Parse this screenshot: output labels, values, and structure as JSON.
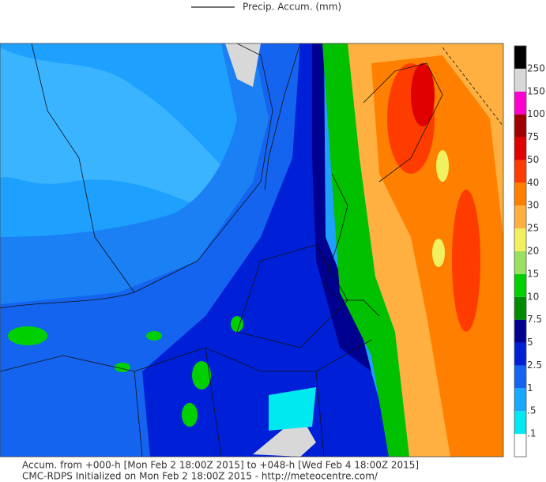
{
  "legend": {
    "label": "Precip. Accum. (mm)"
  },
  "colorbar": {
    "labels": [
      ".1",
      ".5",
      "1",
      "2.5",
      "5",
      "7.5",
      "10",
      "15",
      "20",
      "25",
      "30",
      "40",
      "50",
      "75",
      "100",
      "150",
      "250"
    ],
    "colors": [
      "#ffffff",
      "#00e8f0",
      "#18a8ff",
      "#1464f0",
      "#0020d8",
      "#000090",
      "#008c00",
      "#00d000",
      "#98e060",
      "#f0f060",
      "#ffb040",
      "#ff8000",
      "#ff3c00",
      "#e00000",
      "#a00000",
      "#ff00d0",
      "#d8d8d8",
      "#000000"
    ]
  },
  "footer": {
    "line1": "Accum. from +000-h [Mon Feb 2 18:00Z 2015] to +048-h [Wed Feb 4 18:00Z 2015]",
    "line2": "CMC-RDPS Initialized on Mon Feb 2 18:00Z 2015 - http://meteocentre.com/"
  }
}
